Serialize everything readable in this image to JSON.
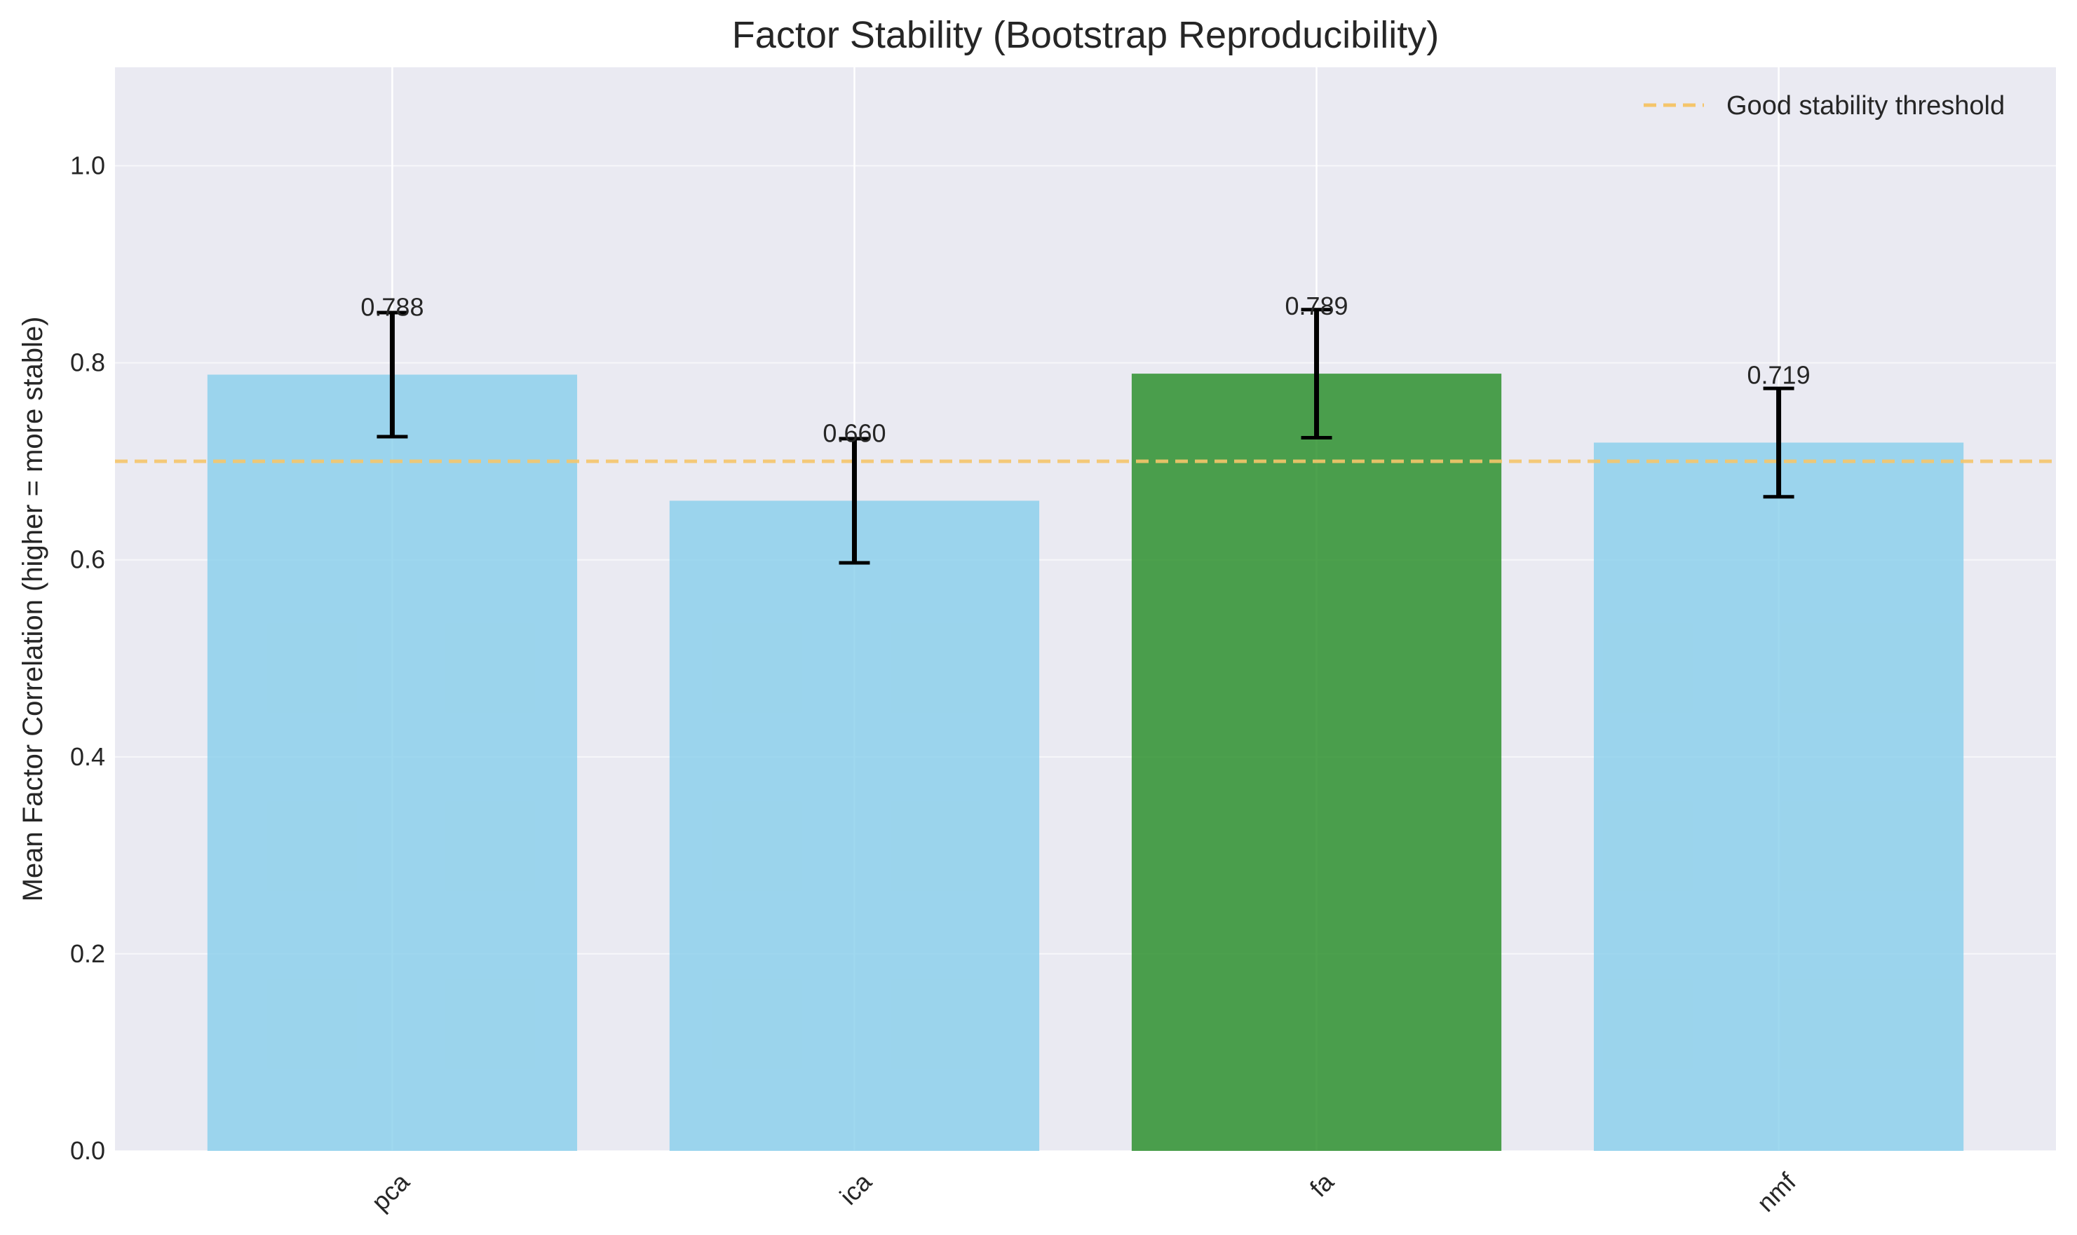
{
  "chart_data": {
    "type": "bar",
    "title": "Factor Stability (Bootstrap Reproducibility)",
    "xlabel": "",
    "ylabel": "Mean Factor Correlation (higher = more stable)",
    "categories": [
      "pca",
      "ica",
      "fa",
      "nmf"
    ],
    "values": [
      0.788,
      0.66,
      0.789,
      0.719
    ],
    "value_labels": [
      "0.788",
      "0.660",
      "0.789",
      "0.719"
    ],
    "error": [
      0.063,
      0.063,
      0.065,
      0.055
    ],
    "bar_colors": [
      "#87CEEB",
      "#87CEEB",
      "#228B22",
      "#87CEEB"
    ],
    "bar_opacity": 0.8,
    "ylim": [
      0,
      1.1
    ],
    "yticks": [
      0.0,
      0.2,
      0.4,
      0.6,
      0.8,
      1.0
    ],
    "ytick_labels": [
      "0.0",
      "0.2",
      "0.4",
      "0.6",
      "0.8",
      "1.0"
    ],
    "threshold": {
      "value": 0.7,
      "label": "Good stability threshold",
      "color": "#F5C56A",
      "style": "dashed"
    },
    "legend_position": "top-right",
    "grid": true,
    "background": "#EAEAF2"
  }
}
